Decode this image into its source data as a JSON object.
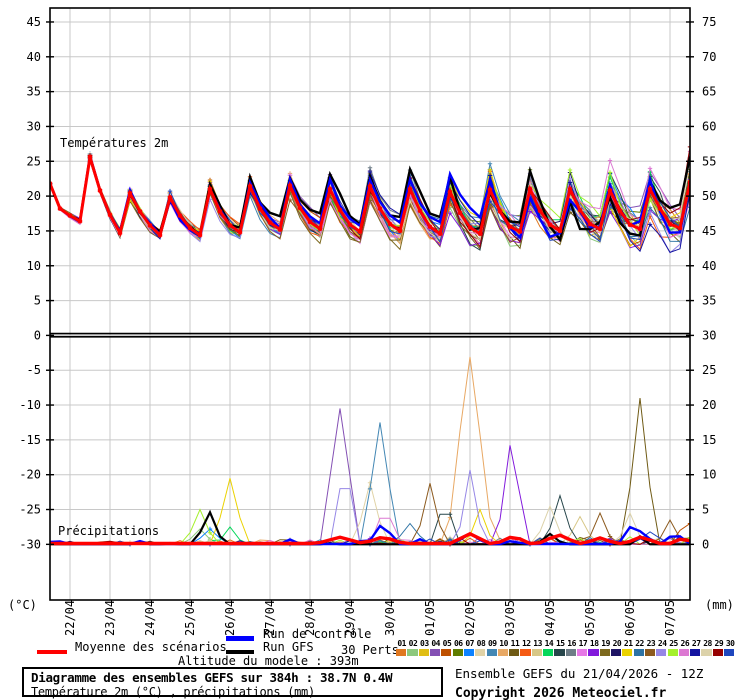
{
  "chart_data": {
    "type": "line",
    "title_top": "Températures 2m",
    "title_bottom": "Précipitations",
    "unit_left": "(°C)",
    "unit_right": "(mm)",
    "x_dates": [
      "22/04",
      "23/04",
      "24/04",
      "25/04",
      "26/04",
      "27/04",
      "28/04",
      "29/04",
      "30/04",
      "01/05",
      "02/05",
      "03/05",
      "04/05",
      "05/05",
      "06/05",
      "07/05"
    ],
    "left_ticks": [
      45,
      40,
      35,
      30,
      25,
      20,
      15,
      10,
      5,
      0,
      -5,
      -10,
      -15,
      -20,
      -25,
      -30
    ],
    "right_ticks": [
      75,
      70,
      65,
      60,
      55,
      50,
      45,
      40,
      35,
      30,
      25,
      20,
      15,
      10,
      5,
      0
    ],
    "left_axis_range": [
      -37.8,
      47.0
    ],
    "right_axis_range": [
      -7.8,
      77.0
    ],
    "x_hours_range": [
      0,
      384
    ],
    "grid": true,
    "temp_mean_6h": [
      21.8,
      18.2,
      17.2,
      16.4,
      25.6,
      20.8,
      17.3,
      14.7,
      20.4,
      17.8,
      15.8,
      14.4,
      19.8,
      17.2,
      15.4,
      14.4,
      21.0,
      17.8,
      15.8,
      14.8,
      21.4,
      18.2,
      16.2,
      15.2,
      21.5,
      18.3,
      16.3,
      15.3,
      21.0,
      18.0,
      15.9,
      14.9,
      21.4,
      18.2,
      16.0,
      15.0,
      21.0,
      17.9,
      15.6,
      14.6,
      20.6,
      17.6,
      15.5,
      14.6,
      20.9,
      17.8,
      15.6,
      14.9,
      21.0,
      17.9,
      15.9,
      15.0,
      21.0,
      18.0,
      16.0,
      15.3,
      20.8,
      17.9,
      15.9,
      15.3,
      21.0,
      18.2,
      16.0,
      15.4,
      22.0
    ],
    "member_spread": {
      "initial": 0.35,
      "final": 3.4,
      "peak_boost": 1.25
    },
    "seed": 987123,
    "precip_base_mm": 0.12,
    "precip_spikes": [
      {
        "member": 25,
        "t": 90,
        "peak": 5.0,
        "w": 9
      },
      {
        "member": 2,
        "t": 90,
        "peak": 2.2,
        "w": 9
      },
      {
        "member": 21,
        "t": 108,
        "peak": 9.5,
        "w": 10
      },
      {
        "member": 14,
        "t": 108,
        "peak": 2.5,
        "w": 8
      },
      {
        "member": 7,
        "t": 96,
        "peak": 2.2,
        "w": 10
      },
      {
        "member": 4,
        "t": 174,
        "peak": 19.5,
        "w": 12
      },
      {
        "member": 24,
        "t": 177,
        "peak": 12.0,
        "w": 9
      },
      {
        "member": 8,
        "t": 192,
        "peak": 8.0,
        "w": 10
      },
      {
        "member": 9,
        "t": 198,
        "peak": 17.5,
        "w": 11
      },
      {
        "member": 26,
        "t": 201,
        "peak": 6.0,
        "w": 8
      },
      {
        "member": 22,
        "t": 216,
        "peak": 3.0,
        "w": 10
      },
      {
        "member": 23,
        "t": 228,
        "peak": 8.0,
        "w": 9
      },
      {
        "member": 15,
        "t": 237,
        "peak": 6.5,
        "w": 9
      },
      {
        "member": 10,
        "t": 252,
        "peak": 26.9,
        "w": 14
      },
      {
        "member": 24,
        "t": 252,
        "peak": 10.0,
        "w": 8
      },
      {
        "member": 21,
        "t": 258,
        "peak": 5.0,
        "w": 8
      },
      {
        "member": 18,
        "t": 277,
        "peak": 16.0,
        "w": 9
      },
      {
        "member": 15,
        "t": 306,
        "peak": 7.0,
        "w": 9
      },
      {
        "member": 28,
        "t": 300,
        "peak": 5.5,
        "w": 9
      },
      {
        "member": 13,
        "t": 318,
        "peak": 4.0,
        "w": 9
      },
      {
        "member": 23,
        "t": 330,
        "peak": 4.5,
        "w": 8
      },
      {
        "member": 11,
        "t": 354,
        "peak": 20.5,
        "w": 10
      },
      {
        "member": 28,
        "t": 348,
        "peak": 4.5,
        "w": 8
      },
      {
        "member": 23,
        "t": 372,
        "peak": 3.5,
        "w": 8
      },
      {
        "member": 5,
        "t": 382,
        "peak": 4.0,
        "w": 8
      },
      {
        "member": 30,
        "t": 360,
        "peak": 1.8,
        "w": 10
      }
    ],
    "control_precip_spikes": [
      {
        "t": 200,
        "peak": 2.6,
        "w": 10
      },
      {
        "t": 252,
        "peak": 1.5,
        "w": 10
      },
      {
        "t": 352,
        "peak": 2.2,
        "w": 12
      }
    ],
    "gfs_precip_spikes": [
      {
        "t": 96,
        "peak": 4.6,
        "w": 8
      },
      {
        "t": 300,
        "peak": 1.5,
        "w": 8
      }
    ],
    "mean_precip_spikes": [
      {
        "t": 174,
        "peak": 0.9,
        "w": 14
      },
      {
        "t": 200,
        "peak": 1.0,
        "w": 12
      },
      {
        "t": 252,
        "peak": 1.4,
        "w": 12
      },
      {
        "t": 278,
        "peak": 1.1,
        "w": 10
      },
      {
        "t": 305,
        "peak": 1.3,
        "w": 12
      },
      {
        "t": 330,
        "peak": 0.8,
        "w": 10
      },
      {
        "t": 355,
        "peak": 1.0,
        "w": 10
      },
      {
        "t": 380,
        "peak": 0.8,
        "w": 8
      }
    ],
    "colors": {
      "mean": "#FF0000",
      "control": "#0000FF",
      "gfs": "#000000",
      "grid": "#C8C8C8",
      "frame": "#000000"
    },
    "members": [
      {
        "num": "01",
        "color": "#E07820"
      },
      {
        "num": "02",
        "color": "#8CC87C"
      },
      {
        "num": "03",
        "color": "#E0BE14"
      },
      {
        "num": "04",
        "color": "#8450B4"
      },
      {
        "num": "05",
        "color": "#BE5000"
      },
      {
        "num": "06",
        "color": "#5F7D00"
      },
      {
        "num": "07",
        "color": "#0C82FF"
      },
      {
        "num": "08",
        "color": "#E1D3A7"
      },
      {
        "num": "09",
        "color": "#4387B4"
      },
      {
        "num": "10",
        "color": "#E8A864"
      },
      {
        "num": "11",
        "color": "#6F5A14"
      },
      {
        "num": "12",
        "color": "#F55A14"
      },
      {
        "num": "13",
        "color": "#D7C787"
      },
      {
        "num": "14",
        "color": "#05D75A"
      },
      {
        "num": "15",
        "color": "#27464B"
      },
      {
        "num": "16",
        "color": "#6E7D87"
      },
      {
        "num": "17",
        "color": "#E678E6"
      },
      {
        "num": "18",
        "color": "#8219DC"
      },
      {
        "num": "19",
        "color": "#7D691E"
      },
      {
        "num": "20",
        "color": "#1E1464"
      },
      {
        "num": "21",
        "color": "#EBD200"
      },
      {
        "num": "22",
        "color": "#2D73A5"
      },
      {
        "num": "23",
        "color": "#8C5A1E"
      },
      {
        "num": "24",
        "color": "#9687E6"
      },
      {
        "num": "25",
        "color": "#A5F02D"
      },
      {
        "num": "26",
        "color": "#DC78D2"
      },
      {
        "num": "27",
        "color": "#1414A0"
      },
      {
        "num": "28",
        "color": "#DCD2AA"
      },
      {
        "num": "29",
        "color": "#960000"
      },
      {
        "num": "30",
        "color": "#1E46BE"
      }
    ]
  },
  "legend": {
    "mean_label": "Moyenne des scénarios",
    "control_label": "Run de contrôle",
    "gfs_label": "Run GFS",
    "perts_label": "30 Perts."
  },
  "annotations": {
    "altitude": "Altitude du modele : 393m"
  },
  "footer": {
    "title_line1": "Diagramme des ensembles GEFS sur 384h : 38.7N 0.4W",
    "title_line2": "Température 2m (°C) , précipitations (mm)",
    "run_info": "Ensemble GEFS du 21/04/2026 - 12Z",
    "copyright": "Copyright 2026 Meteociel.fr"
  }
}
